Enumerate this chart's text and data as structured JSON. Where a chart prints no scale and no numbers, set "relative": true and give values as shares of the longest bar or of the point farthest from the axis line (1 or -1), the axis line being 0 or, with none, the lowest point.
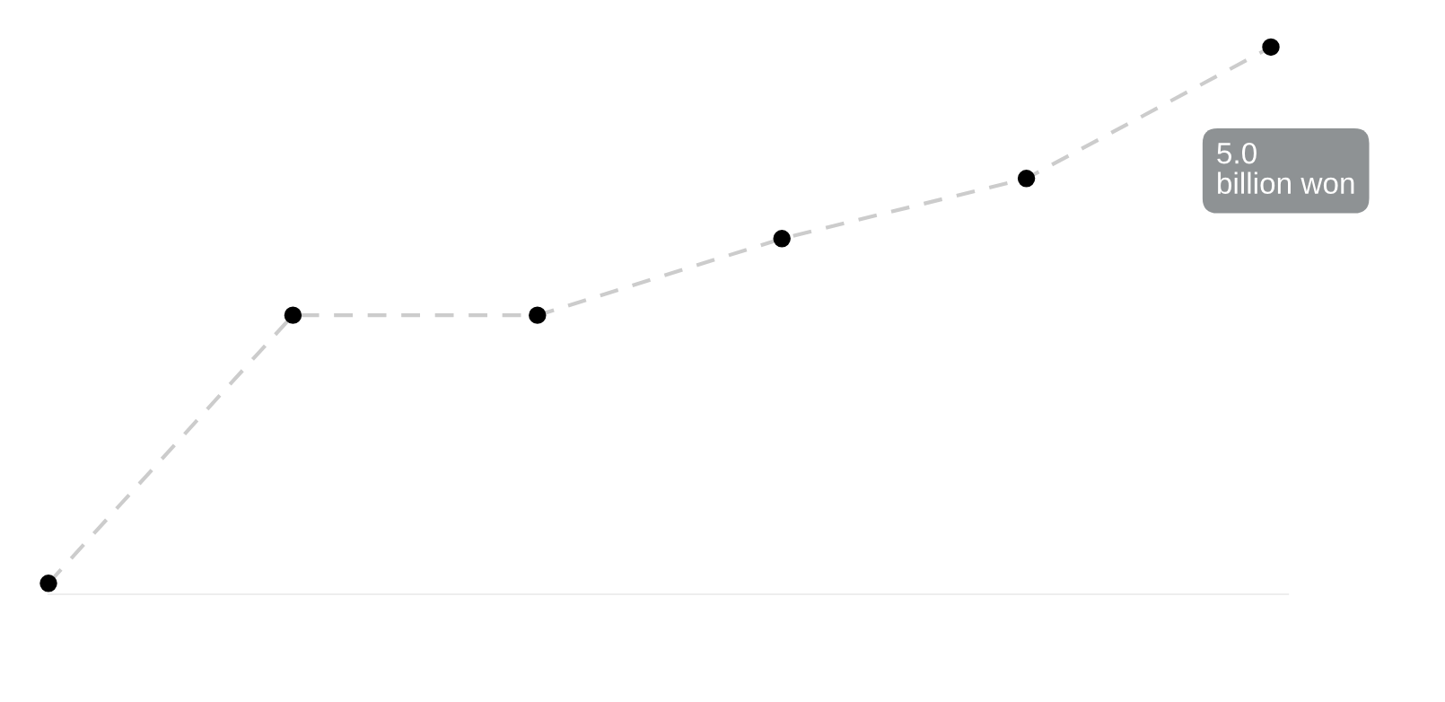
{
  "chart_data": {
    "type": "line",
    "relative": true,
    "categories": [
      null,
      null,
      null,
      null,
      null,
      null
    ],
    "series": [
      {
        "color": "#cccccc",
        "values": [
          0.02,
          0.51,
          0.51,
          0.65,
          0.76,
          1
        ]
      }
    ],
    "marker": "circle",
    "line_style": "dashed",
    "annotations": [
      "5.0\nbillion won"
    ]
  }
}
